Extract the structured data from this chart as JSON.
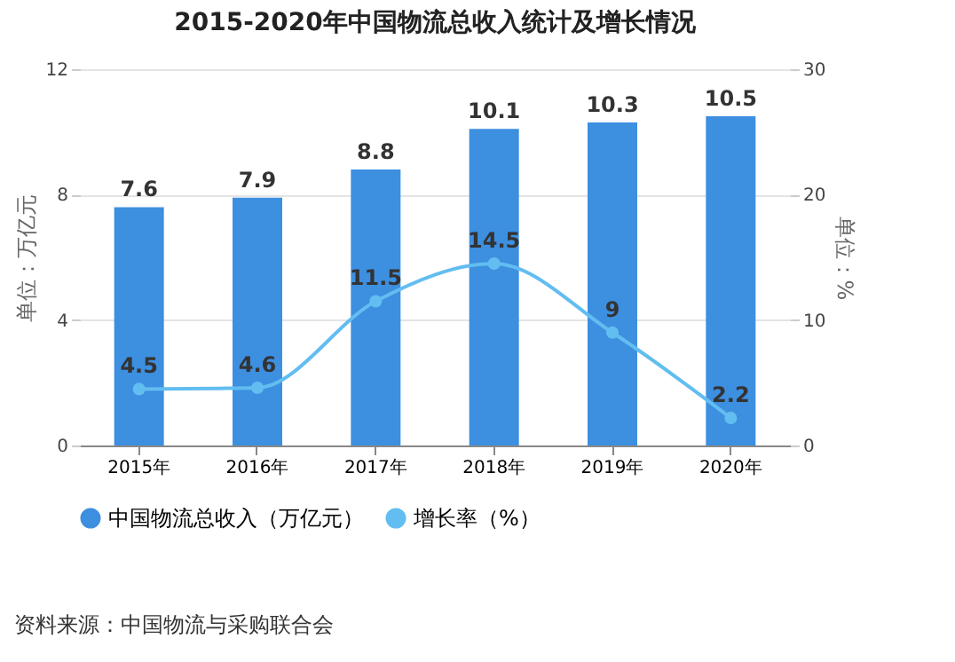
{
  "chart_data": {
    "type": "bar",
    "title": "2015-2020年中国物流总收入统计及增长情况",
    "categories": [
      "2015年",
      "2016年",
      "2017年",
      "2018年",
      "2019年",
      "2020年"
    ],
    "series": [
      {
        "name": "中国物流总收入（万亿元）",
        "color": "#3d8fe0",
        "values": [
          7.6,
          7.9,
          8.8,
          10.1,
          10.3,
          10.5
        ]
      },
      {
        "name": "增长率（%）",
        "type": "line",
        "axis": "y2",
        "color": "#62bdf0",
        "values": [
          4.5,
          4.6,
          11.5,
          14.5,
          9,
          2.2
        ]
      }
    ],
    "ylabel": "单位：万亿元",
    "y2label": "单位：%",
    "ylim": [
      0,
      12
    ],
    "yticks": [
      0,
      4,
      8,
      12
    ],
    "y2lim": [
      0,
      30
    ],
    "y2ticks": [
      0,
      10,
      20,
      30
    ],
    "grid": "y",
    "legend": "bottom",
    "marker": "circle",
    "data_labels": true,
    "annotations": [
      "资料来源：中国物流与采购联合会"
    ]
  }
}
